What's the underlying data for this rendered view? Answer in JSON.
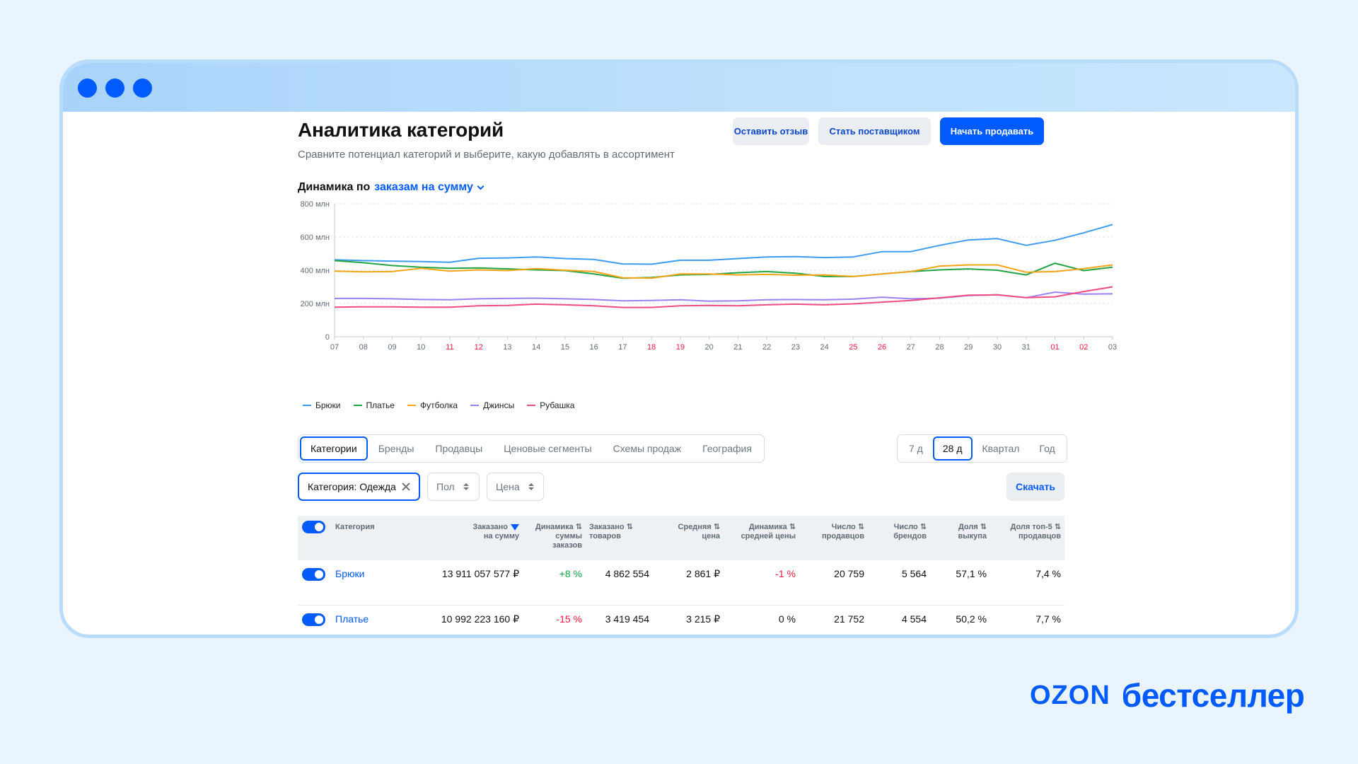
{
  "header": {
    "title": "Аналитика категорий",
    "subtitle": "Сравните потенциал категорий и выберите, какую добавлять в ассортимент",
    "buttons": {
      "feedback": "Оставить отзыв",
      "supplier": "Стать поставщиком",
      "start_selling": "Начать продавать"
    }
  },
  "dynamics": {
    "label": "Динамика по",
    "selector": "заказам на сумму"
  },
  "chart_data": {
    "type": "line",
    "y_ticks": [
      "800 млн",
      "600 млн",
      "400 млн",
      "200 млн",
      "0"
    ],
    "ylim": [
      0,
      800
    ],
    "unit": "млн",
    "grid": true,
    "legend_position": "bottom-left",
    "x": [
      "07",
      "08",
      "09",
      "10",
      "11",
      "12",
      "13",
      "14",
      "15",
      "16",
      "17",
      "18",
      "19",
      "20",
      "21",
      "22",
      "23",
      "24",
      "25",
      "26",
      "27",
      "28",
      "29",
      "30",
      "31",
      "01",
      "02",
      "03"
    ],
    "x_red": [
      "11",
      "12",
      "18",
      "19",
      "25",
      "26",
      "01",
      "02"
    ],
    "series": [
      {
        "name": "Брюки",
        "color": "#3d9bef",
        "values": [
          463,
          458,
          455,
          452,
          448,
          472,
          474,
          480,
          470,
          465,
          438,
          436,
          460,
          460,
          470,
          480,
          482,
          476,
          480,
          512,
          512,
          550,
          582,
          590,
          550,
          580,
          625,
          675
        ]
      },
      {
        "name": "Платье",
        "color": "#22a446",
        "values": [
          458,
          445,
          428,
          418,
          412,
          414,
          408,
          402,
          398,
          378,
          352,
          356,
          372,
          375,
          385,
          392,
          382,
          362,
          362,
          378,
          392,
          402,
          408,
          400,
          372,
          442,
          398,
          418
        ]
      },
      {
        "name": "Футболка",
        "color": "#f5a418",
        "values": [
          395,
          390,
          392,
          412,
          395,
          402,
          398,
          410,
          400,
          392,
          355,
          352,
          378,
          378,
          372,
          375,
          370,
          372,
          362,
          378,
          392,
          425,
          432,
          432,
          388,
          392,
          410,
          432
        ]
      },
      {
        "name": "Джинсы",
        "color": "#9c81f0",
        "values": [
          230,
          230,
          228,
          224,
          222,
          228,
          230,
          232,
          228,
          224,
          216,
          218,
          222,
          214,
          216,
          222,
          224,
          222,
          226,
          238,
          228,
          232,
          248,
          252,
          235,
          268,
          256,
          258
        ]
      },
      {
        "name": "Рубашка",
        "color": "#ef4d82",
        "values": [
          178,
          180,
          180,
          178,
          178,
          186,
          188,
          196,
          192,
          186,
          176,
          176,
          186,
          188,
          186,
          192,
          196,
          192,
          198,
          208,
          218,
          234,
          250,
          252,
          235,
          240,
          272,
          300
        ]
      }
    ]
  },
  "tabs": [
    "Категории",
    "Бренды",
    "Продавцы",
    "Ценовые сегменты",
    "Схемы продаж",
    "География"
  ],
  "active_tab": "Категории",
  "periods": [
    "7 д",
    "28 д",
    "Квартал",
    "Год"
  ],
  "active_period": "28 д",
  "filters": {
    "category": "Категория: Одежда",
    "gender": "Пол",
    "price": "Цена"
  },
  "download": "Скачать",
  "table": {
    "headers": {
      "category": "Категория",
      "ordered_sum_1": "Заказано",
      "ordered_sum_2": "на сумму",
      "dyn_sum_1": "Динамика",
      "dyn_sum_2": "суммы",
      "dyn_sum_3": "заказов",
      "ordered_goods_1": "Заказано",
      "ordered_goods_2": "товаров",
      "avg_price_1": "Средняя",
      "avg_price_2": "цена",
      "dyn_avg_1": "Динамика",
      "dyn_avg_2": "средней цены",
      "sellers_1": "Число",
      "sellers_2": "продавцов",
      "brands_1": "Число",
      "brands_2": "брендов",
      "buyout_1": "Доля",
      "buyout_2": "выкупа",
      "top5_1": "Доля топ-5",
      "top5_2": "продавцов"
    },
    "rows": [
      {
        "category": "Брюки",
        "ordered_sum": "13 911 057 577 ₽",
        "dyn_sum": "+8 %",
        "ordered_goods": "4 862 554",
        "avg_price": "2 861 ₽",
        "dyn_avg": "-1 %",
        "sellers": "20 759",
        "brands": "5 564",
        "buyout": "57,1 %",
        "top5": "7,4 %"
      },
      {
        "category": "Платье",
        "ordered_sum": "10 992 223 160 ₽",
        "dyn_sum": "-15 %",
        "ordered_goods": "3 419 454",
        "avg_price": "3 215 ₽",
        "dyn_avg": "0 %",
        "sellers": "21 752",
        "brands": "4 554",
        "buyout": "50,2 %",
        "top5": "7,7 %"
      }
    ]
  },
  "brand": {
    "ozon": "OZON",
    "name": "бестселлер"
  }
}
